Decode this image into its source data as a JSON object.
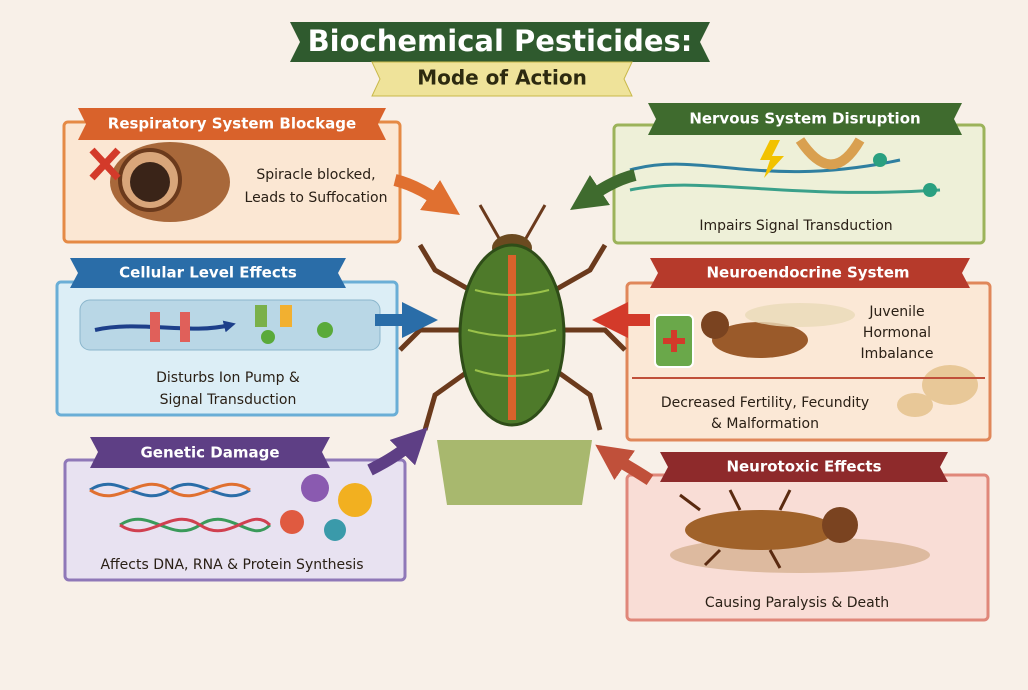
{
  "header": {
    "title": "Biochemical Pesticides:",
    "subtitle": "Mode of Action"
  },
  "panels": [
    {
      "heading": "Respiratory System Blockage",
      "lines": [
        "Spiracle blocked,",
        "Leads to Suffocation"
      ]
    },
    {
      "heading": "Nervous System Disruption",
      "lines": [
        "Impairs Signal Transduction"
      ]
    },
    {
      "heading": "Cellular Level Effects",
      "lines": [
        "Disturbs Ion Pump &",
        "Signal Transduction"
      ]
    },
    {
      "heading": "Neuroendocrine System",
      "lines": [
        "Juvenile",
        "Hormonal",
        "Imbalance",
        "Decreased Fertility, Fecundity",
        "& Malformation"
      ]
    },
    {
      "heading": "Genetic Damage",
      "lines": [
        "Affects DNA, RNA & Protein Synthesis"
      ]
    },
    {
      "heading": "Neurotoxic Effects",
      "lines": [
        "Causing Paralysis & Death"
      ]
    }
  ]
}
